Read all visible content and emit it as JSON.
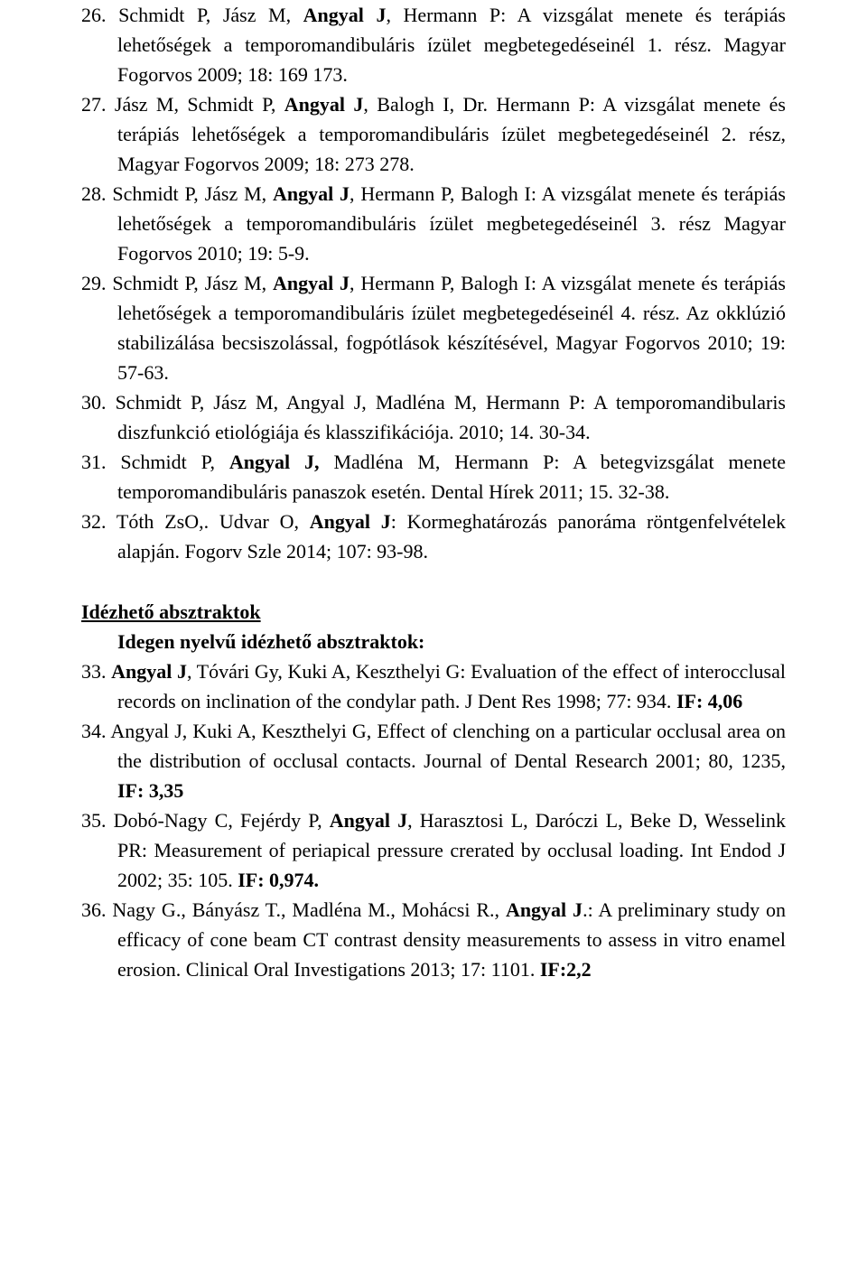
{
  "font_family": "Times New Roman",
  "font_size_pt": 12,
  "text_color": "#000000",
  "background_color": "#ffffff",
  "refs_upper": [
    {
      "num": "26.",
      "segments": [
        {
          "t": "Schmidt P, Jász M, ",
          "b": false
        },
        {
          "t": "Angyal J",
          "b": true
        },
        {
          "t": ", Hermann P: A vizsgálat menete és terápiás lehetőségek a temporomandibuláris ízület megbetegedéseinél 1. rész. Magyar Fogorvos 2009; 18: 169 173.",
          "b": false
        }
      ]
    },
    {
      "num": "27.",
      "segments": [
        {
          "t": "Jász M, Schmidt P, ",
          "b": false
        },
        {
          "t": "Angyal J",
          "b": true
        },
        {
          "t": ", Balogh I, Dr. Hermann P: A vizsgálat menete és terápiás lehetőségek a temporomandibuláris ízület megbetegedéseinél 2. rész, Magyar Fogorvos 2009; 18: 273 278.",
          "b": false
        }
      ]
    },
    {
      "num": "28.",
      "segments": [
        {
          "t": "Schmidt P, Jász M, ",
          "b": false
        },
        {
          "t": "Angyal J",
          "b": true
        },
        {
          "t": ", Hermann P, Balogh I: A vizsgálat menete és terápiás lehetőségek a temporomandibuláris ízület megbetegedéseinél 3. rész Magyar Fogorvos 2010; 19: 5-9.",
          "b": false
        }
      ]
    },
    {
      "num": "29.",
      "segments": [
        {
          "t": "Schmidt P, Jász M, ",
          "b": false
        },
        {
          "t": "Angyal J",
          "b": true
        },
        {
          "t": ", Hermann P, Balogh I: A vizsgálat menete és terápiás lehetőségek a temporomandibuláris ízület megbetegedéseinél 4. rész. Az okklúzió stabilizálása becsiszolással, fogpótlások készítésével, Magyar Fogorvos 2010; 19: 57-63.",
          "b": false
        }
      ]
    },
    {
      "num": "30.",
      "segments": [
        {
          "t": "Schmidt P, Jász M, Angyal J, Madléna M, Hermann P: A temporomandibularis diszfunkció etiológiája és klasszifikációja. 2010; 14. 30-34.",
          "b": false
        }
      ]
    },
    {
      "num": "31.",
      "segments": [
        {
          "t": "Schmidt P, ",
          "b": false
        },
        {
          "t": "Angyal J,",
          "b": true
        },
        {
          "t": " Madléna M, Hermann P: A betegvizsgálat menete temporomandibuláris panaszok esetén. Dental Hírek 2011; 15. 32-38.",
          "b": false
        }
      ]
    },
    {
      "num": "32.",
      "segments": [
        {
          "t": "Tóth ZsO,. Udvar O, ",
          "b": false
        },
        {
          "t": "Angyal J",
          "b": true
        },
        {
          "t": ": Kormeghatározás panoráma röntgenfelvételek alapján. Fogorv Szle 2014; 107: 93-98.",
          "b": false
        }
      ]
    }
  ],
  "section_heading": "Idézhető absztraktok",
  "sub_heading": "Idegen nyelvű idézhető absztraktok:",
  "refs_lower": [
    {
      "num": "33.",
      "segments": [
        {
          "t": "Angyal J",
          "b": true
        },
        {
          "t": ", Tóvári Gy, Kuki A, Keszthelyi G: Evaluation of the effect of interocclusal records on inclination of the condylar path. J Dent Res 1998; 77: 934.  ",
          "b": false
        },
        {
          "t": "IF: 4,06",
          "b": true
        }
      ]
    },
    {
      "num": "34.",
      "segments": [
        {
          "t": "Angyal J, Kuki A, Keszthelyi G, Effect of clenching on a particular occlusal area on the distribution of occlusal contacts. Journal of Dental Research 2001; 80, 1235, ",
          "b": false
        },
        {
          "t": "IF: 3,35",
          "b": true
        }
      ]
    },
    {
      "num": "35.",
      "segments": [
        {
          "t": "Dobó-Nagy C, Fejérdy P, ",
          "b": false
        },
        {
          "t": "Angyal J",
          "b": true
        },
        {
          "t": ", Harasztosi L, Daróczi L, Beke D, Wesselink PR: Measurement of periapical pressure crerated by occlusal loading. Int Endod J 2002; 35: 105. ",
          "b": false
        },
        {
          "t": "IF: 0,974.",
          "b": true
        }
      ]
    },
    {
      "num": "36.",
      "segments": [
        {
          "t": "Nagy G., Bányász T., Madléna M., Mohácsi R., ",
          "b": false
        },
        {
          "t": "Angyal J",
          "b": true
        },
        {
          "t": ".: A preliminary study on efficacy of cone beam CT contrast density measurements to assess in vitro enamel erosion. Clinical Oral Investigations 2013; 17: 1101. ",
          "b": false
        },
        {
          "t": "IF:2,2",
          "b": true
        }
      ]
    }
  ]
}
